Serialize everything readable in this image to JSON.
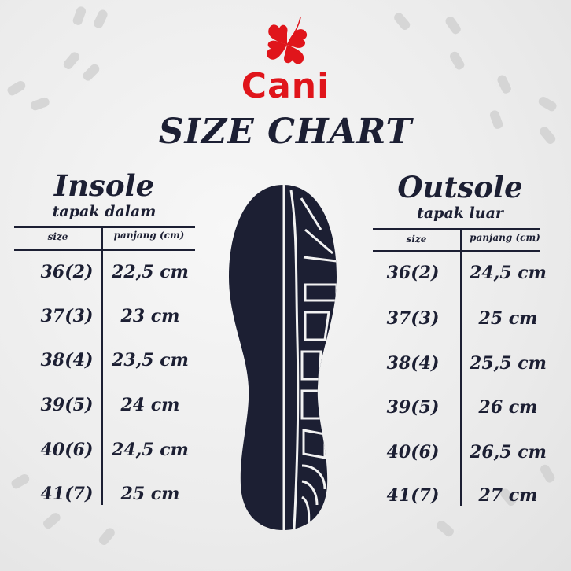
{
  "brand": {
    "name": "Cani",
    "color": "#e0151b",
    "logo_icon": "four-leaf-clover-icon"
  },
  "title": "SIZE CHART",
  "insole": {
    "heading": "Insole",
    "subheading": "tapak dalam",
    "columns": [
      "size",
      "panjang (cm)"
    ],
    "rows": [
      [
        "36(2)",
        "22,5 cm"
      ],
      [
        "37(3)",
        "23 cm"
      ],
      [
        "38(4)",
        "23,5 cm"
      ],
      [
        "39(5)",
        "24 cm"
      ],
      [
        "40(6)",
        "24,5 cm"
      ],
      [
        "41(7)",
        "25 cm"
      ]
    ]
  },
  "outsole": {
    "heading": "Outsole",
    "subheading": "tapak luar",
    "columns": [
      "size",
      "panjang (cm)"
    ],
    "rows": [
      [
        "36(2)",
        "24,5 cm"
      ],
      [
        "37(3)",
        "25 cm"
      ],
      [
        "38(4)",
        "25,5 cm"
      ],
      [
        "39(5)",
        "26 cm"
      ],
      [
        "40(6)",
        "26,5 cm"
      ],
      [
        "41(7)",
        "27 cm"
      ]
    ]
  },
  "colors": {
    "ink": "#1c1f33",
    "background": "#eeeeee"
  }
}
